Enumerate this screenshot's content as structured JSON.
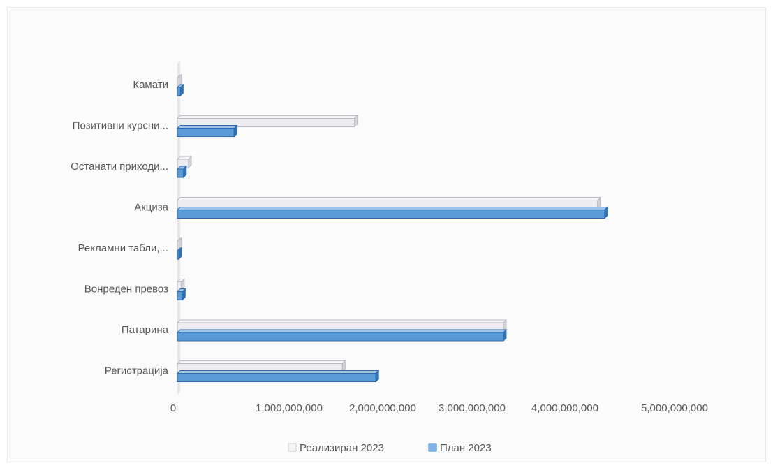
{
  "chart_data": {
    "type": "bar",
    "orientation": "horizontal",
    "style": "3d",
    "categories": [
      "Камати",
      "Позитивни курсни...",
      "Останати приходи...",
      "Акциза",
      "Рекламни табли,...",
      "Вонреден превоз",
      "Патарина",
      "Регистрација"
    ],
    "series": [
      {
        "name": "Реализиран 2023",
        "color": "#e8e8ee",
        "values": [
          15000000,
          1750000000,
          110000000,
          4150000000,
          15000000,
          40000000,
          3220000000,
          1630000000
        ]
      },
      {
        "name": "План 2023",
        "color": "#5b9bd5",
        "values": [
          30000000,
          560000000,
          60000000,
          4220000000,
          8000000,
          50000000,
          3220000000,
          1960000000
        ]
      }
    ],
    "xlim": [
      0,
      5000000000
    ],
    "xticks": [
      "0",
      "1,000,000,000",
      "2,000,000,000",
      "3,000,000,000",
      "4,000,000,000",
      "5,000,000,000"
    ],
    "legend": "bottom",
    "grid": false
  }
}
